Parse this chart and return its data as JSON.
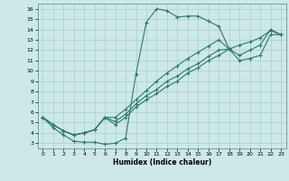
{
  "xlabel": "Humidex (Indice chaleur)",
  "xlim": [
    -0.5,
    23.5
  ],
  "ylim": [
    2.5,
    16.5
  ],
  "xticks": [
    0,
    1,
    2,
    3,
    4,
    5,
    6,
    7,
    8,
    9,
    10,
    11,
    12,
    13,
    14,
    15,
    16,
    17,
    18,
    19,
    20,
    21,
    22,
    23
  ],
  "yticks": [
    3,
    4,
    5,
    6,
    7,
    8,
    9,
    10,
    11,
    12,
    13,
    14,
    15,
    16
  ],
  "bg_color": "#cde8e8",
  "line_color": "#2a7a6a",
  "grid_color": "#aacfcf",
  "curve1_x": [
    0,
    1,
    2,
    3,
    4,
    5,
    6,
    7,
    8,
    9,
    10,
    11,
    12,
    13,
    14,
    15,
    16,
    17,
    18
  ],
  "curve1_y": [
    5.5,
    4.5,
    3.8,
    3.2,
    3.1,
    3.1,
    2.9,
    3.0,
    3.5,
    9.7,
    14.7,
    16.0,
    15.8,
    15.2,
    15.3,
    15.3,
    14.8,
    14.3,
    12.1
  ],
  "curve2_x": [
    0,
    1,
    2,
    3,
    4,
    5,
    6,
    7,
    8,
    9,
    10,
    11,
    12,
    13,
    14,
    15,
    16,
    17,
    18,
    19,
    20,
    21,
    22,
    23
  ],
  "curve2_y": [
    5.5,
    4.8,
    4.2,
    3.8,
    4.0,
    4.3,
    5.5,
    5.5,
    6.3,
    7.2,
    8.1,
    9.0,
    9.8,
    10.5,
    11.2,
    11.8,
    12.4,
    13.0,
    12.1,
    12.5,
    12.8,
    13.2,
    13.9,
    13.5
  ],
  "curve3_x": [
    0,
    1,
    2,
    3,
    4,
    5,
    6,
    7,
    8,
    9,
    10,
    11,
    12,
    13,
    14,
    15,
    16,
    17,
    18,
    19,
    20,
    21,
    22,
    23
  ],
  "curve3_y": [
    5.5,
    4.8,
    4.2,
    3.8,
    4.0,
    4.3,
    5.5,
    5.1,
    5.8,
    6.8,
    7.6,
    8.2,
    9.0,
    9.5,
    10.2,
    10.7,
    11.4,
    12.0,
    12.1,
    11.5,
    12.0,
    12.5,
    14.0,
    13.5
  ],
  "curve4_x": [
    0,
    1,
    2,
    3,
    4,
    5,
    6,
    7,
    8,
    9,
    10,
    11,
    12,
    13,
    14,
    15,
    16,
    17,
    18,
    19,
    20,
    21,
    22,
    23
  ],
  "curve4_y": [
    5.5,
    4.8,
    4.2,
    3.8,
    4.0,
    4.3,
    5.5,
    4.8,
    5.5,
    6.5,
    7.2,
    7.8,
    8.5,
    9.0,
    9.8,
    10.3,
    11.0,
    11.5,
    12.1,
    11.0,
    11.2,
    11.5,
    13.5,
    13.5
  ]
}
